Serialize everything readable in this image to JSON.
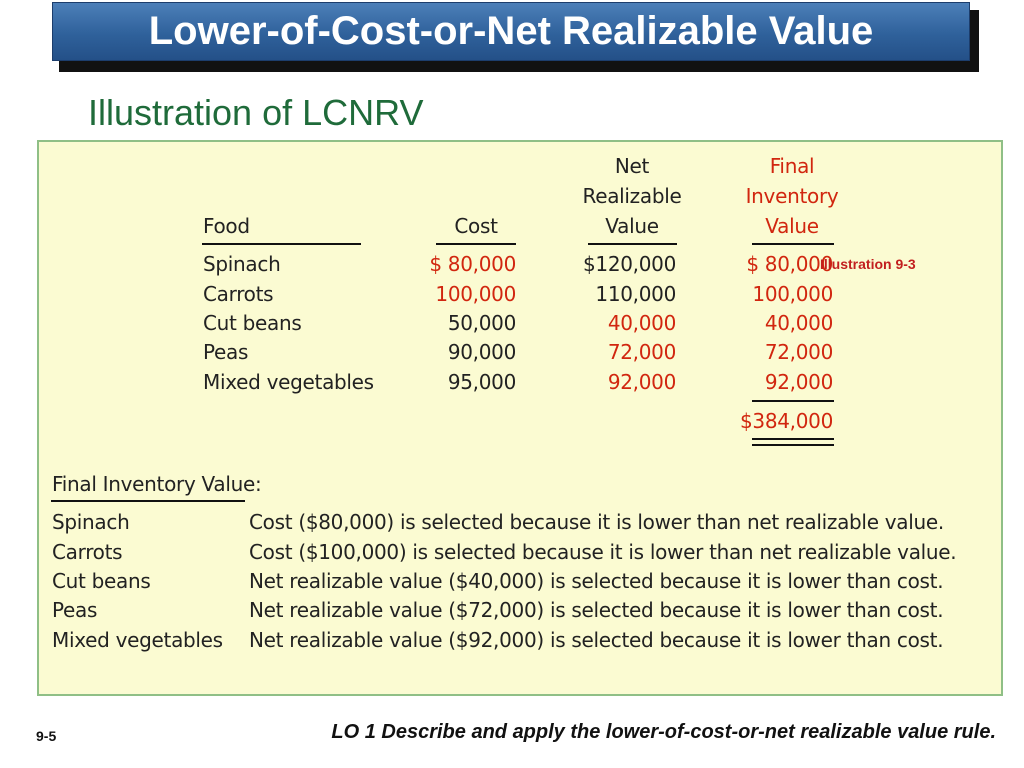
{
  "slide": {
    "title": "Lower-of-Cost-or-Net Realizable Value",
    "subtitle": "Illustration of LCNRV",
    "illustration_label": "Illustration 9-3",
    "page_number": "9-5",
    "learning_objective": "LO 1  Describe and apply the lower-of-cost-or-net realizable value rule."
  },
  "table": {
    "headers": {
      "food": "Food",
      "cost": "Cost",
      "nrv_line1": "Net",
      "nrv_line2": "Realizable",
      "nrv_line3": "Value",
      "final_line1": "Final",
      "final_line2": "Inventory",
      "final_line3": "Value"
    },
    "rows": [
      {
        "food": "Spinach",
        "cost": "$  80,000",
        "nrv": "$120,000",
        "final": "$  80,000",
        "lower": "cost"
      },
      {
        "food": "Carrots",
        "cost": "100,000",
        "nrv": "110,000",
        "final": "100,000",
        "lower": "cost"
      },
      {
        "food": "Cut beans",
        "cost": "50,000",
        "nrv": "40,000",
        "final": "40,000",
        "lower": "nrv"
      },
      {
        "food": "Peas",
        "cost": "90,000",
        "nrv": "72,000",
        "final": "72,000",
        "lower": "nrv"
      },
      {
        "food": "Mixed vegetables",
        "cost": "95,000",
        "nrv": "92,000",
        "final": "92,000",
        "lower": "nrv"
      }
    ],
    "total": "$384,000"
  },
  "explanation": {
    "heading": "Final Inventory Value:",
    "rows": [
      {
        "item": "Spinach",
        "reason": "Cost ($80,000) is selected because it is lower than net realizable value."
      },
      {
        "item": "Carrots",
        "reason": "Cost ($100,000) is selected because it is lower than net realizable value."
      },
      {
        "item": "Cut beans",
        "reason": "Net realizable value ($40,000) is selected because it is lower than cost."
      },
      {
        "item": "Peas",
        "reason": "Net realizable value ($72,000) is selected because it is lower than cost."
      },
      {
        "item": "Mixed vegetables",
        "reason": "Net realizable value ($92,000) is selected because it is lower than cost."
      }
    ]
  },
  "colors": {
    "title_bar": "#2f619b",
    "subtitle": "#1f6b3a",
    "panel_background": "#fbfbd2",
    "panel_border": "#8fbf86",
    "selected_value": "#d1260f"
  }
}
